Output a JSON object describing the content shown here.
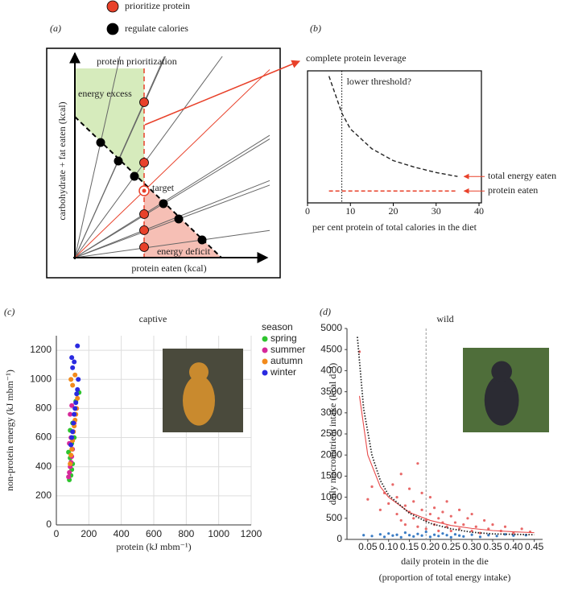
{
  "chart_data": [
    {
      "type": "diagram",
      "label": "(a)",
      "legend": [
        {
          "name": "prioritize protein",
          "color": "#e8412a"
        },
        {
          "name": "regulate calories",
          "color": "#000000"
        }
      ],
      "y_label": "carbohydrate + fat eaten (kcal)",
      "x_label": "protein eaten (kcal)",
      "annotations": [
        "protein prioritization",
        "energy excess",
        "target",
        "energy deficit"
      ]
    },
    {
      "type": "line",
      "label": "(b)",
      "title": "complete protein leverage",
      "title_color": "#e8412a",
      "x_label": "per cent protein of total calories in the diet",
      "xlim": [
        0,
        40
      ],
      "xticks": [
        0,
        10,
        20,
        30,
        40
      ],
      "ylim": [
        0,
        100
      ],
      "threshold_x": 8,
      "threshold_label": "lower threshold?",
      "x": [
        5,
        8,
        10,
        15,
        20,
        25,
        30,
        35
      ],
      "series": [
        {
          "name": "total energy eaten",
          "color": "#222222",
          "values": [
            96,
            68,
            56,
            41,
            32,
            27,
            23,
            20
          ]
        },
        {
          "name": "protein eaten",
          "color": "#e8412a",
          "values": [
            9,
            9,
            9,
            9,
            9,
            9,
            9,
            9
          ]
        }
      ]
    },
    {
      "type": "scatter",
      "label": "(c)",
      "title": "captive",
      "x_label": "protein (kJ mbm⁻¹)",
      "y_label": "non-protein energy (kJ mbm⁻¹)",
      "xlim": [
        0,
        1200
      ],
      "xticks": [
        0,
        200,
        400,
        600,
        800,
        1000,
        1200
      ],
      "ylim": [
        0,
        1300
      ],
      "yticks": [
        0,
        200,
        400,
        600,
        800,
        1000,
        1200
      ],
      "grid": true,
      "legend_title": "season",
      "legend": "upper right",
      "series": [
        {
          "name": "spring",
          "color": "#2ec42e",
          "x": [
            80,
            90,
            95,
            100,
            85,
            75,
            110,
            140,
            120,
            95,
            85,
            100
          ],
          "values": [
            310,
            340,
            380,
            420,
            460,
            500,
            600,
            910,
            850,
            560,
            650,
            700
          ]
        },
        {
          "name": "summer",
          "color": "#d6289a",
          "x": [
            75,
            80,
            85,
            90,
            95,
            100,
            80,
            90,
            105,
            110,
            85,
            95
          ],
          "values": [
            330,
            360,
            400,
            430,
            470,
            520,
            560,
            600,
            640,
            700,
            760,
            820
          ]
        },
        {
          "name": "autumn",
          "color": "#f28a1c",
          "x": [
            85,
            90,
            95,
            100,
            105,
            110,
            115,
            120,
            125,
            130,
            100,
            115,
            90
          ],
          "values": [
            420,
            480,
            520,
            580,
            640,
            680,
            720,
            760,
            800,
            870,
            960,
            1030,
            1000
          ]
        },
        {
          "name": "winter",
          "color": "#2a2ae0",
          "x": [
            90,
            95,
            100,
            105,
            110,
            115,
            120,
            125,
            130,
            135,
            100,
            110,
            95,
            130
          ],
          "values": [
            550,
            600,
            640,
            700,
            760,
            800,
            840,
            900,
            930,
            1000,
            1080,
            1120,
            1150,
            1230
          ]
        }
      ]
    },
    {
      "type": "scatter",
      "label": "(d)",
      "title": "wild",
      "x_label": [
        "daily protein in the die",
        "(proportion of total energy intake)"
      ],
      "y_label": "daily macronutrient intake (kcal d⁻¹)",
      "xlim": [
        0,
        0.47
      ],
      "xticks": [
        0.05,
        {
          "value": 0.1,
          "label": "0.10"
        },
        0.15,
        {
          "value": 0.2,
          "label": "0.20"
        },
        0.25,
        {
          "value": 0.3,
          "label": "0.30"
        },
        0.35,
        {
          "value": 0.4,
          "label": "0.40"
        },
        0.45
      ],
      "ylim": [
        0,
        5000
      ],
      "yticks": [
        0,
        500,
        1000,
        1500,
        2000,
        2500,
        3000,
        3500,
        4000,
        4500,
        5000
      ],
      "reference_x": 0.19,
      "series": [
        {
          "mode": "points",
          "color": "#e86868",
          "x": [
            0.03,
            0.05,
            0.06,
            0.08,
            0.09,
            0.1,
            0.11,
            0.12,
            0.12,
            0.13,
            0.13,
            0.14,
            0.14,
            0.15,
            0.15,
            0.16,
            0.16,
            0.17,
            0.17,
            0.18,
            0.18,
            0.19,
            0.19,
            0.2,
            0.2,
            0.21,
            0.21,
            0.22,
            0.22,
            0.23,
            0.23,
            0.24,
            0.24,
            0.25,
            0.25,
            0.26,
            0.27,
            0.27,
            0.28,
            0.29,
            0.3,
            0.3,
            0.31,
            0.32,
            0.33,
            0.34,
            0.35,
            0.37,
            0.38,
            0.4,
            0.42,
            0.44
          ],
          "values": [
            4450,
            950,
            1250,
            700,
            1100,
            850,
            1300,
            600,
            1000,
            450,
            1550,
            800,
            350,
            1200,
            650,
            500,
            900,
            1800,
            300,
            700,
            1100,
            450,
            250,
            600,
            1000,
            350,
            750,
            500,
            200,
            650,
            400,
            300,
            900,
            550,
            200,
            400,
            700,
            250,
            350,
            500,
            200,
            600,
            300,
            150,
            450,
            250,
            350,
            200,
            300,
            150,
            250,
            180
          ]
        },
        {
          "mode": "points",
          "color": "#3a7cc4",
          "x": [
            0.04,
            0.06,
            0.08,
            0.09,
            0.1,
            0.11,
            0.12,
            0.13,
            0.14,
            0.15,
            0.16,
            0.17,
            0.18,
            0.19,
            0.2,
            0.21,
            0.22,
            0.23,
            0.24,
            0.25,
            0.26,
            0.27,
            0.28,
            0.3,
            0.32,
            0.34,
            0.36,
            0.38,
            0.4,
            0.43
          ],
          "values": [
            100,
            80,
            120,
            60,
            140,
            90,
            110,
            50,
            160,
            100,
            70,
            130,
            90,
            180,
            60,
            110,
            80,
            140,
            100,
            50,
            120,
            90,
            70,
            110,
            60,
            100,
            80,
            120,
            90,
            100
          ]
        },
        {
          "mode": "line",
          "color": "#e84a4a",
          "x": [
            0.03,
            0.05,
            0.08,
            0.1,
            0.15,
            0.2,
            0.25,
            0.3,
            0.35,
            0.4,
            0.45
          ],
          "values": [
            3400,
            2000,
            1250,
            1000,
            640,
            450,
            330,
            260,
            210,
            180,
            160
          ]
        },
        {
          "mode": "line",
          "dash": "dotted",
          "color": "#222222",
          "x": [
            0.025,
            0.04,
            0.06,
            0.08,
            0.1,
            0.15,
            0.2,
            0.25,
            0.3,
            0.35,
            0.45
          ],
          "values": [
            4800,
            3100,
            2000,
            1400,
            1050,
            620,
            380,
            250,
            170,
            130,
            110
          ]
        }
      ]
    }
  ]
}
